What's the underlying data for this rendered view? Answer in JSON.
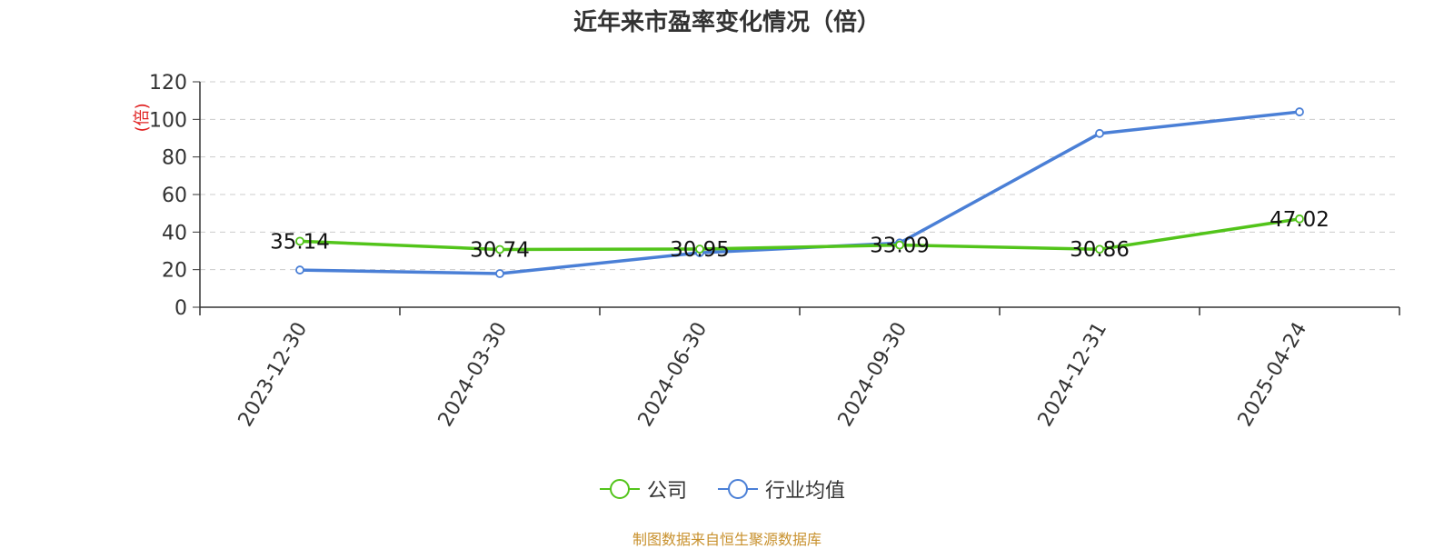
{
  "title": "近年来市盈率变化情况（倍）",
  "source": "制图数据来自恒生聚源数据库",
  "colors": {
    "company": "#52c41a",
    "industry": "#4a7fd6",
    "ylabel": "#e02020",
    "source": "#c8912e"
  },
  "chart_data": {
    "type": "line",
    "title": "近年来市盈率变化情况（倍）",
    "ylabel": "(倍)",
    "xlabel": "",
    "categories": [
      "2023-12-30",
      "2024-03-30",
      "2024-06-30",
      "2024-09-30",
      "2024-12-31",
      "2025-04-24"
    ],
    "ylim": [
      0,
      120
    ],
    "yticks": [
      0,
      20,
      40,
      60,
      80,
      100,
      120
    ],
    "grid": true,
    "legend_position": "bottom-center",
    "series": [
      {
        "name": "公司",
        "values": [
          35.14,
          30.74,
          30.95,
          33.09,
          30.86,
          47.02
        ],
        "labels": [
          "35.14",
          "30.74",
          "30.95",
          "33.09",
          "30.86",
          "47.02"
        ]
      },
      {
        "name": "行业均值",
        "values": [
          19.8,
          17.9,
          29.0,
          34.2,
          92.5,
          104.0
        ]
      }
    ]
  }
}
